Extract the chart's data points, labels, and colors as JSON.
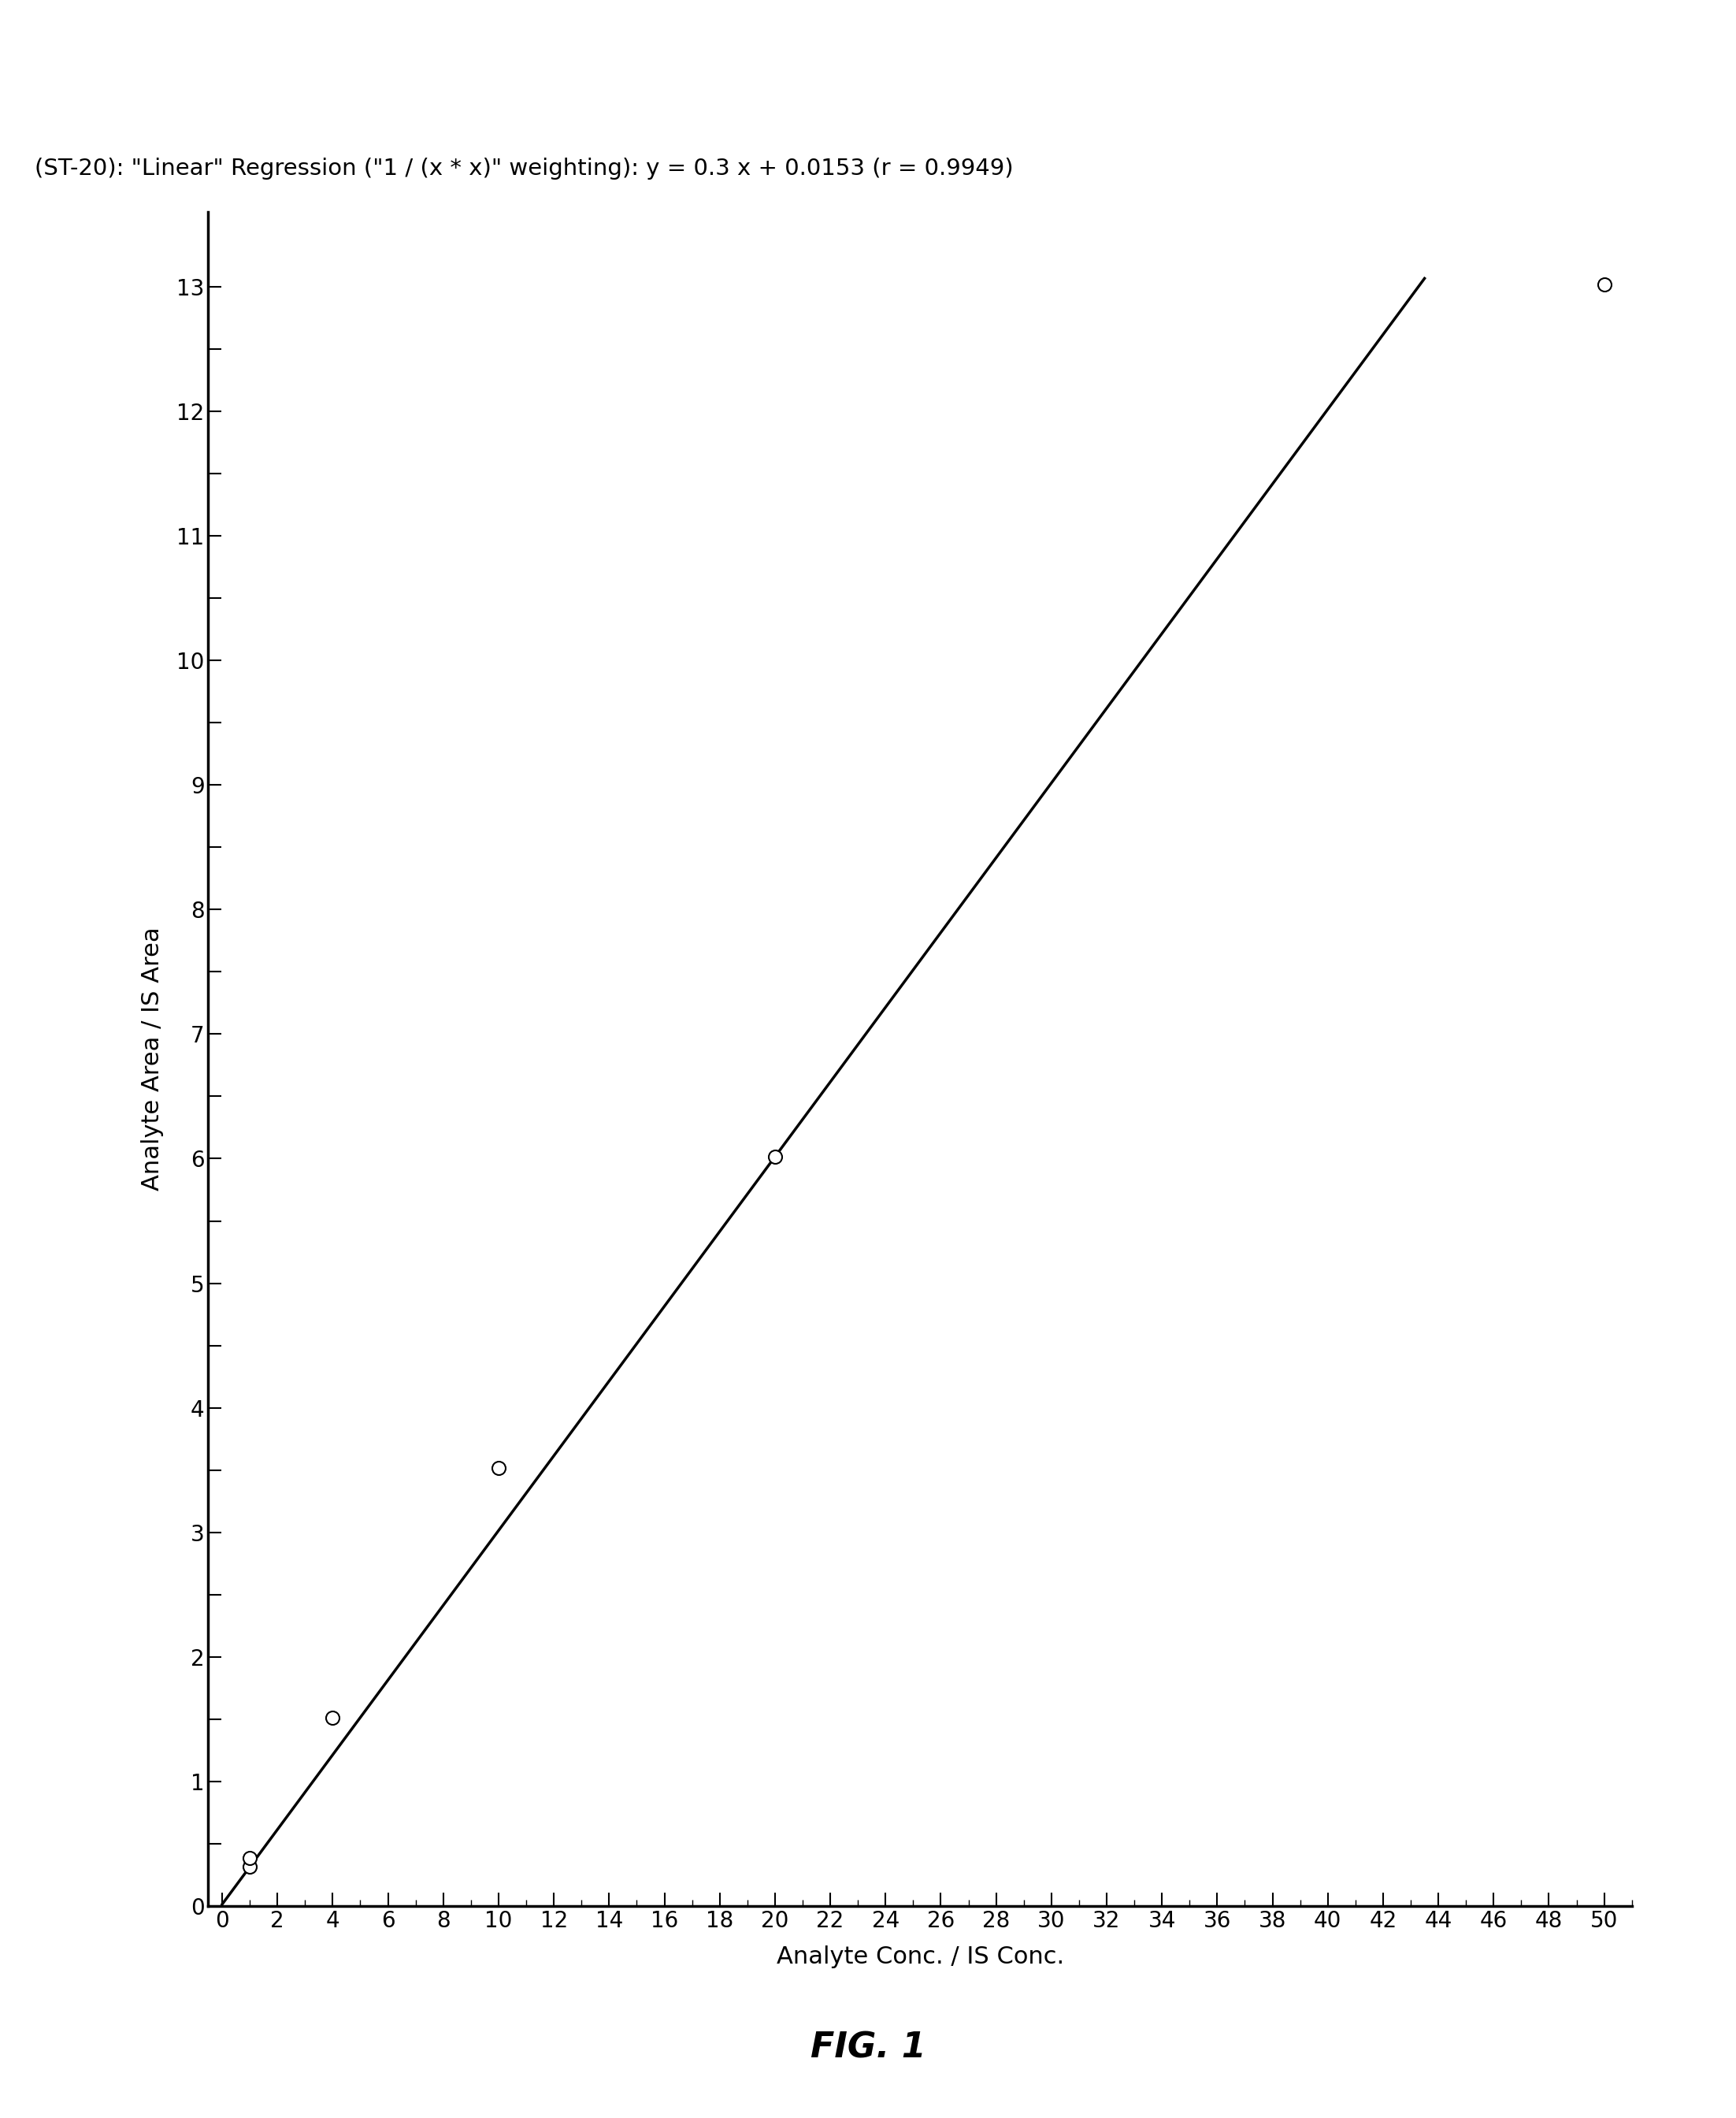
{
  "title": "(ST-20): \"Linear\" Regression (\"1 / (x * x)\" weighting): y = 0.3 x + 0.0153 (r = 0.9949)",
  "xlabel": "Analyte Conc. / IS Conc.",
  "ylabel": "Analyte Area / IS Area",
  "fig_caption": "FIG. 1",
  "slope": 0.3,
  "intercept": 0.0153,
  "scatter_x": [
    1.0,
    1.0,
    4.0,
    10.0,
    20.0,
    50.0
  ],
  "scatter_y": [
    0.315,
    0.39,
    1.515,
    3.515,
    6.015,
    13.015
  ],
  "xlim": [
    -0.5,
    51
  ],
  "ylim": [
    0,
    13.6
  ],
  "x_major_tick_step": 2,
  "x_major_ticks": [
    0,
    2,
    4,
    6,
    8,
    10,
    12,
    14,
    16,
    18,
    20,
    22,
    24,
    26,
    28,
    30,
    32,
    34,
    36,
    38,
    40,
    42,
    44,
    46,
    48,
    50
  ],
  "y_tick_values": [
    0.0,
    0.5,
    1.0,
    1.5,
    2.0,
    2.5,
    3.0,
    3.5,
    4.0,
    4.5,
    5.0,
    5.5,
    6.0,
    6.5,
    7.0,
    7.5,
    8.0,
    8.5,
    9.0,
    9.5,
    10.0,
    10.5,
    11.0,
    11.5,
    12.0,
    12.5,
    13.0
  ],
  "y_tick_labels": [
    "0",
    "",
    "1",
    "",
    "2",
    "",
    "3",
    "",
    "4",
    "",
    "5",
    "",
    "6",
    "",
    "7",
    "",
    "8",
    "",
    "9",
    "",
    "10",
    "",
    "11",
    "",
    "12",
    "",
    "13"
  ],
  "x_minor_tick_step": 1.0,
  "background_color": "#ffffff",
  "line_color": "#000000",
  "scatter_color": "#ffffff",
  "scatter_edge_color": "#000000",
  "axis_color": "#000000",
  "title_fontsize": 21,
  "label_fontsize": 22,
  "tick_fontsize": 20,
  "caption_fontsize": 32,
  "scatter_size": 150,
  "scatter_linewidth": 1.5,
  "line_width": 2.5,
  "line_x_start": 0.0,
  "line_x_end": 43.5
}
